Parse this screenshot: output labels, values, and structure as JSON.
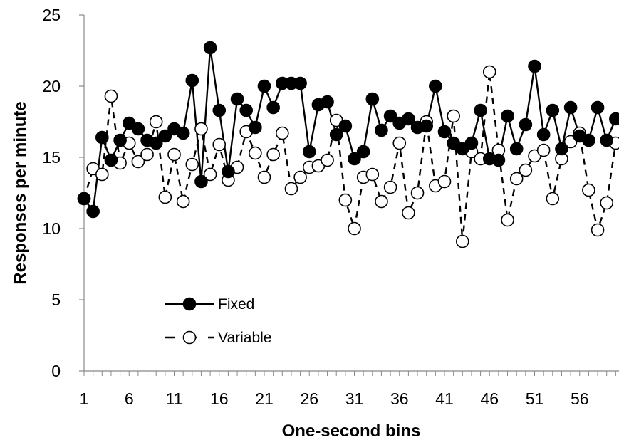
{
  "chart_data": {
    "type": "line",
    "xlabel": "One-second bins",
    "ylabel": "Responses per minute",
    "xlim": [
      1,
      60
    ],
    "ylim": [
      0,
      25
    ],
    "y_ticks": [
      0,
      5,
      10,
      15,
      20,
      25
    ],
    "x_tick_labels": [
      1,
      6,
      11,
      16,
      21,
      26,
      31,
      36,
      41,
      46,
      51,
      56
    ],
    "grid": false,
    "legend": "lower-left inside plot",
    "x": [
      1,
      2,
      3,
      4,
      5,
      6,
      7,
      8,
      9,
      10,
      11,
      12,
      13,
      14,
      15,
      16,
      17,
      18,
      19,
      20,
      21,
      22,
      23,
      24,
      25,
      26,
      27,
      28,
      29,
      30,
      31,
      32,
      33,
      34,
      35,
      36,
      37,
      38,
      39,
      40,
      41,
      42,
      43,
      44,
      45,
      46,
      47,
      48,
      49,
      50,
      51,
      52,
      53,
      54,
      55,
      56,
      57,
      58,
      59,
      60
    ],
    "series": [
      {
        "name": "Fixed",
        "marker": "filled-circle",
        "line": "solid",
        "color": "#000000",
        "values": [
          12.1,
          11.2,
          16.4,
          14.8,
          16.2,
          17.4,
          17.0,
          16.2,
          16.0,
          16.5,
          17.0,
          16.7,
          20.4,
          13.3,
          22.7,
          18.3,
          14.0,
          19.1,
          18.3,
          17.1,
          20.0,
          18.5,
          20.2,
          20.2,
          20.2,
          15.4,
          18.7,
          18.9,
          16.6,
          17.2,
          14.9,
          15.4,
          19.1,
          16.9,
          17.9,
          17.4,
          17.7,
          17.1,
          17.2,
          20.0,
          16.8,
          16.0,
          15.6,
          16.0,
          18.3,
          14.9,
          14.8,
          17.9,
          15.6,
          17.3,
          21.4,
          16.6,
          18.3,
          15.6,
          18.5,
          16.5,
          16.2,
          18.5,
          16.2,
          17.7
        ]
      },
      {
        "name": "Variable",
        "marker": "open-circle",
        "line": "dashed",
        "color": "#000000",
        "values": [
          12.1,
          14.2,
          13.8,
          19.3,
          14.6,
          16.0,
          14.7,
          15.2,
          17.5,
          12.2,
          15.2,
          11.9,
          14.5,
          17.0,
          13.8,
          15.9,
          13.4,
          14.3,
          16.8,
          15.3,
          13.6,
          15.2,
          16.7,
          12.8,
          13.6,
          14.3,
          14.4,
          14.8,
          17.6,
          12.0,
          10.0,
          13.6,
          13.8,
          11.9,
          12.9,
          16.0,
          11.1,
          12.5,
          17.5,
          13.0,
          13.3,
          17.9,
          9.1,
          15.4,
          14.9,
          21.0,
          15.5,
          10.6,
          13.5,
          14.1,
          15.1,
          15.5,
          12.1,
          14.9,
          16.1,
          16.7,
          12.7,
          9.9,
          11.8,
          16.0
        ]
      }
    ]
  }
}
